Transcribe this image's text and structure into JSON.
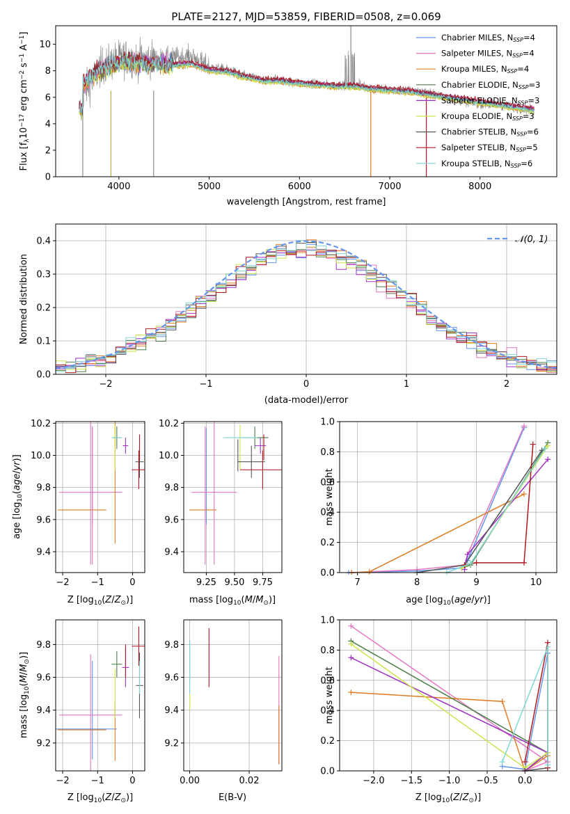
{
  "figure_title": "PLATE=2127, MJD=53859, FIBERID=0508, z=0.069",
  "colors": {
    "Chabrier MILES": "#6495ed",
    "Salpeter MILES": "#e377c2",
    "Kroupa MILES": "#e07b21",
    "Chabrier ELODIE": "#4a7f4a",
    "Salpeter ELODIE": "#9d31c4",
    "Kroupa ELODIE": "#cde34a",
    "Chabrier STELIB": "#555555",
    "Salpeter STELIB": "#b0171f",
    "Kroupa STELIB": "#7fd6d6",
    "data": "#8c8c8c",
    "normal": "#6495ed"
  },
  "chart_data": [
    {
      "id": "spectrum",
      "type": "line",
      "title": "PLATE=2127, MJD=53859, FIBERID=0508, z=0.069",
      "xlabel": "wavelength [Angstrom, rest frame]",
      "ylabel": "Flux [fλ10⁻¹⁷ erg cm⁻² s⁻¹ A⁻¹]",
      "xlim": [
        3300,
        8850
      ],
      "ylim": [
        0,
        11.4
      ],
      "xticks": [
        "4000",
        "5000",
        "6000",
        "7000",
        "8000"
      ],
      "yticks": [
        "0",
        "2",
        "4",
        "6",
        "8",
        "10"
      ],
      "x": [
        3600,
        3700,
        3800,
        3900,
        4000,
        4100,
        4200,
        4400,
        4600,
        4800,
        5000,
        5200,
        5400,
        5600,
        5800,
        6000,
        6200,
        6400,
        6600,
        6800,
        7000,
        7200,
        7400,
        7600,
        7800,
        8000,
        8200,
        8400,
        8600
      ],
      "series": [
        {
          "name": "data",
          "values": [
            6.3,
            7.2,
            8.3,
            8.6,
            8.9,
            9.0,
            8.8,
            8.9,
            9.0,
            9.1,
            8.3,
            8.1,
            7.6,
            7.3,
            7.3,
            7.1,
            7.0,
            6.9,
            7.0,
            6.7,
            6.6,
            6.5,
            6.4,
            6.0,
            5.7,
            5.5,
            5.4,
            5.2,
            5.0
          ]
        },
        {
          "name": "Chabrier MILES, N_SSP=4",
          "values": [
            6.8,
            7.5,
            8.0,
            8.3,
            8.6,
            8.6,
            8.5,
            8.5,
            8.4,
            8.5,
            8.0,
            7.9,
            7.5,
            7.2,
            7.2,
            7.0,
            6.9,
            6.8,
            6.8,
            6.6,
            6.5,
            6.4,
            6.2,
            6.0,
            5.8,
            5.6,
            5.4,
            5.2,
            5.1
          ]
        },
        {
          "name": "Salpeter MILES, N_SSP=4",
          "values": [
            6.9,
            7.6,
            8.1,
            8.4,
            8.7,
            8.7,
            8.6,
            8.6,
            8.5,
            8.6,
            8.1,
            8.0,
            7.6,
            7.3,
            7.3,
            7.1,
            7.0,
            6.9,
            6.9,
            6.7,
            6.6,
            6.5,
            6.3,
            6.1,
            5.9,
            5.7,
            5.5,
            5.3,
            5.2
          ]
        },
        {
          "name": "Kroupa MILES, N_SSP=4",
          "values": [
            6.7,
            7.4,
            7.9,
            8.2,
            8.5,
            8.5,
            8.4,
            8.4,
            8.3,
            8.4,
            7.9,
            7.8,
            7.4,
            7.1,
            7.1,
            6.9,
            6.8,
            6.7,
            6.7,
            6.5,
            6.4,
            6.3,
            6.1,
            5.9,
            5.7,
            5.5,
            5.3,
            5.1,
            5.0
          ]
        },
        {
          "name": "Chabrier ELODIE, N_SSP=3",
          "values": [
            7.0,
            7.6,
            8.1,
            8.3,
            8.6,
            8.7,
            8.6,
            8.5,
            8.4,
            8.5,
            8.0,
            7.9,
            7.5,
            7.2,
            7.2,
            7.0,
            6.9,
            6.8,
            6.8,
            6.6,
            6.5,
            6.4,
            6.2,
            6.0,
            5.8,
            5.6,
            5.4,
            5.2,
            5.0
          ]
        },
        {
          "name": "Salpeter ELODIE, N_SSP=3",
          "values": [
            7.1,
            7.7,
            8.2,
            8.4,
            8.7,
            8.8,
            8.7,
            8.6,
            8.5,
            8.6,
            8.1,
            8.0,
            7.6,
            7.3,
            7.3,
            7.1,
            7.0,
            6.9,
            6.9,
            6.7,
            6.6,
            6.5,
            6.3,
            6.1,
            5.9,
            5.7,
            5.5,
            5.3,
            5.1
          ]
        },
        {
          "name": "Kroupa ELODIE, N_SSP=3",
          "values": [
            6.9,
            7.5,
            8.0,
            8.2,
            8.5,
            8.6,
            8.5,
            8.4,
            8.3,
            8.4,
            7.9,
            7.8,
            7.4,
            7.1,
            7.1,
            6.9,
            6.8,
            6.7,
            6.7,
            6.5,
            6.4,
            6.3,
            6.1,
            5.9,
            5.7,
            5.5,
            5.3,
            5.1,
            4.9
          ]
        },
        {
          "name": "Chabrier STELIB, N_SSP=6",
          "values": [
            7.2,
            7.8,
            8.2,
            8.5,
            8.7,
            8.8,
            8.7,
            8.6,
            8.5,
            8.6,
            8.1,
            8.0,
            7.6,
            7.3,
            7.3,
            7.1,
            7.0,
            6.9,
            6.9,
            6.7,
            6.6,
            6.5,
            6.3,
            6.1,
            5.9,
            5.7,
            5.5,
            5.3,
            5.1
          ]
        },
        {
          "name": "Salpeter STELIB, N_SSP=5",
          "values": [
            7.3,
            7.9,
            8.3,
            8.6,
            8.8,
            8.9,
            8.8,
            8.7,
            8.6,
            8.7,
            8.2,
            8.1,
            7.7,
            7.4,
            7.4,
            7.2,
            7.1,
            7.0,
            7.0,
            6.8,
            6.7,
            6.6,
            6.4,
            6.2,
            6.0,
            5.8,
            5.6,
            5.4,
            5.2
          ]
        },
        {
          "name": "Kroupa STELIB, N_SSP=6",
          "values": [
            7.1,
            7.7,
            8.1,
            8.4,
            8.6,
            8.7,
            8.6,
            8.5,
            8.4,
            8.5,
            8.0,
            7.9,
            7.5,
            7.2,
            7.2,
            7.0,
            6.9,
            6.8,
            6.8,
            6.6,
            6.5,
            6.4,
            6.2,
            6.0,
            5.8,
            5.6,
            5.4,
            5.2,
            5.0
          ]
        }
      ],
      "legend": {
        "placement": "upper-right",
        "entries": [
          "Chabrier MILES, N",
          "Salpeter MILES, N",
          "Kroupa MILES, N",
          "Chabrier ELODIE, N",
          "Salpeter ELODIE, N",
          "Kroupa ELODIE, N",
          "Chabrier STELIB, N",
          "Salpeter STELIB, N",
          "Kroupa STELIB, N"
        ],
        "sub": "SSP",
        "counts": [
          "=4",
          "=4",
          "=4",
          "=3",
          "=3",
          "=3",
          "=6",
          "=5",
          "=6"
        ]
      },
      "grid": false
    },
    {
      "id": "residuals",
      "type": "bar",
      "xlabel": "(data-model)/error",
      "ylabel": "Normed distribution",
      "xlim": [
        -2.5,
        2.5
      ],
      "ylim": [
        0,
        0.45
      ],
      "xticks": [
        "−2",
        "−1",
        "0",
        "1",
        "2"
      ],
      "yticks": [
        "0.0",
        "0.1",
        "0.2",
        "0.3",
        "0.4"
      ],
      "bin_width": 0.1,
      "histogram_left_edge": -2.5,
      "legend": {
        "placement": "upper-right",
        "entry": "𝒩(0, 1)"
      },
      "grid": true
    },
    {
      "id": "age-vs-Z",
      "type": "scatter",
      "xlabel": "Z [log₁₀(Z/Z⊙)]",
      "ylabel": "age  [log₁₀(age/yr)]",
      "xlim": [
        -2.2,
        0.35
      ],
      "ylim": [
        9.27,
        10.21
      ],
      "xticks": [
        "−2",
        "−1",
        "0"
      ],
      "yticks": [
        "9.4",
        "9.6",
        "9.8",
        "10.0",
        "10.2"
      ],
      "grid": true
    },
    {
      "id": "age-vs-mass",
      "type": "scatter",
      "xlabel": "mass [log₁₀(M/M⊙)]",
      "xlim": [
        9.05,
        9.92
      ],
      "ylim": [
        9.27,
        10.21
      ],
      "xticks": [
        "9.25",
        "9.50",
        "9.75"
      ],
      "yticks": [
        "9.4",
        "9.6",
        "9.8",
        "10.0",
        "10.2"
      ],
      "grid": true
    },
    {
      "id": "mass-weight-vs-age",
      "type": "line",
      "xlabel": "age  [log₁₀(age/yr)]",
      "ylabel": "mass weight",
      "xlim": [
        6.7,
        10.35
      ],
      "ylim": [
        0,
        1.0
      ],
      "xticks": [
        "7",
        "8",
        "9",
        "10"
      ],
      "yticks": [
        "0.0",
        "0.2",
        "0.4",
        "0.6",
        "0.8",
        "1.0"
      ],
      "grid": true
    },
    {
      "id": "mass-vs-Z",
      "type": "scatter",
      "xlabel": "Z [log₁₀(Z/Z⊙)]",
      "ylabel": "mass [log₁₀(M/M⊙)]",
      "xlim": [
        -2.2,
        0.35
      ],
      "ylim": [
        9.03,
        9.95
      ],
      "xticks": [
        "−2",
        "−1",
        "0"
      ],
      "yticks": [
        "9.2",
        "9.4",
        "9.6",
        "9.8"
      ],
      "grid": true
    },
    {
      "id": "mass-vs-ebv",
      "type": "scatter",
      "xlabel": "E(B-V)",
      "xlim": [
        -0.002,
        0.031
      ],
      "ylim": [
        9.03,
        9.95
      ],
      "xticks": [
        "0.00",
        "0.02"
      ],
      "yticks": [
        "9.2",
        "9.4",
        "9.6",
        "9.8"
      ],
      "grid": true
    },
    {
      "id": "mass-weight-vs-Z",
      "type": "line",
      "xlabel": "Z [log₁₀(Z/Z⊙)]",
      "ylabel": "mass weight",
      "xlim": [
        -2.45,
        0.42
      ],
      "ylim": [
        0,
        1.0
      ],
      "xticks": [
        "−2.0",
        "−1.5",
        "−1.0",
        "−0.5",
        "0.0"
      ],
      "yticks": [
        "0.0",
        "0.2",
        "0.4",
        "0.6",
        "0.8",
        "1.0"
      ],
      "grid": true
    }
  ]
}
